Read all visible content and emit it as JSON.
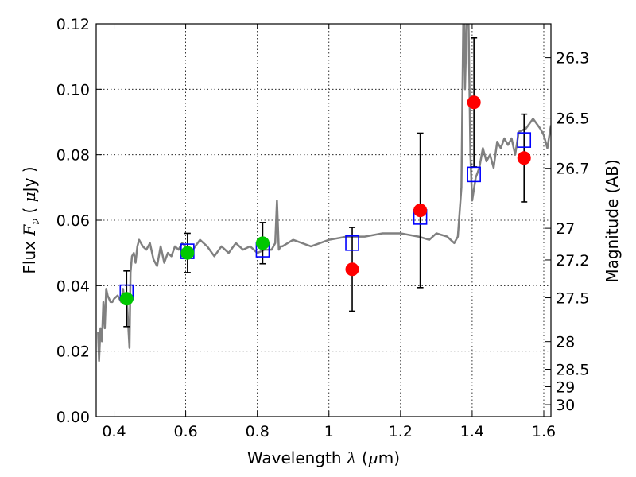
{
  "chart_data": {
    "type": "scatter",
    "xlabel_prefix": "Wavelength",
    "xlabel_symbol": "λ",
    "xlabel_unit_open": "(",
    "xlabel_unit_mu": "μ",
    "xlabel_unit_rest": "m)",
    "ylabel_prefix": "Flux",
    "ylabel_symbol": "F",
    "ylabel_sub": "ν",
    "ylabel_unit_open": "(",
    "ylabel_unit_mu": "μ",
    "ylabel_unit_rest": "Jy )",
    "y2label": "Magnitude (AB)",
    "xlim": [
      0.35,
      1.62
    ],
    "ylim": [
      0.0,
      0.12
    ],
    "grid": true,
    "x_ticks": [
      "0.4",
      "0.6",
      "0.8",
      "1",
      "1.2",
      "1.4",
      "1.6"
    ],
    "y_ticks": [
      "0.00",
      "0.02",
      "0.04",
      "0.06",
      "0.08",
      "0.10",
      "0.12"
    ],
    "mag_ticks": [
      "26.3",
      "26.5",
      "26.7",
      "27",
      "27.2",
      "27.5",
      "28",
      "28.5",
      "29",
      "30"
    ],
    "colors": {
      "model": "#808080",
      "model_points": "#0000ff",
      "ground_photometry": "#00c800",
      "nir_photometry": "#ff0000",
      "errorbars": "#000000"
    },
    "model_spectrum": {
      "x": [
        0.355,
        0.358,
        0.362,
        0.366,
        0.37,
        0.374,
        0.378,
        0.382,
        0.386,
        0.39,
        0.395,
        0.4,
        0.41,
        0.42,
        0.425,
        0.43,
        0.435,
        0.44,
        0.443,
        0.446,
        0.45,
        0.455,
        0.46,
        0.465,
        0.47,
        0.48,
        0.49,
        0.5,
        0.51,
        0.52,
        0.53,
        0.54,
        0.55,
        0.56,
        0.57,
        0.58,
        0.59,
        0.6,
        0.62,
        0.64,
        0.66,
        0.68,
        0.7,
        0.72,
        0.74,
        0.76,
        0.78,
        0.8,
        0.82,
        0.84,
        0.85,
        0.855,
        0.86,
        0.865,
        0.87,
        0.9,
        0.95,
        1.0,
        1.05,
        1.1,
        1.15,
        1.2,
        1.25,
        1.28,
        1.3,
        1.33,
        1.35,
        1.36,
        1.37,
        1.375,
        1.378,
        1.38,
        1.385,
        1.39,
        1.395,
        1.4,
        1.41,
        1.42,
        1.43,
        1.44,
        1.45,
        1.46,
        1.47,
        1.48,
        1.49,
        1.5,
        1.51,
        1.52,
        1.53,
        1.55,
        1.57,
        1.59,
        1.6,
        1.61,
        1.62
      ],
      "y": [
        0.026,
        0.017,
        0.027,
        0.023,
        0.035,
        0.027,
        0.039,
        0.037,
        0.036,
        0.035,
        0.035,
        0.036,
        0.037,
        0.035,
        0.039,
        0.035,
        0.037,
        0.027,
        0.021,
        0.044,
        0.049,
        0.05,
        0.047,
        0.052,
        0.054,
        0.052,
        0.051,
        0.053,
        0.048,
        0.046,
        0.052,
        0.047,
        0.05,
        0.049,
        0.052,
        0.051,
        0.053,
        0.052,
        0.051,
        0.054,
        0.052,
        0.049,
        0.052,
        0.05,
        0.053,
        0.051,
        0.052,
        0.05,
        0.051,
        0.051,
        0.053,
        0.066,
        0.051,
        0.052,
        0.052,
        0.054,
        0.052,
        0.054,
        0.055,
        0.055,
        0.056,
        0.056,
        0.055,
        0.054,
        0.056,
        0.055,
        0.053,
        0.055,
        0.07,
        0.12,
        0.122,
        0.1,
        0.122,
        0.12,
        0.08,
        0.066,
        0.073,
        0.076,
        0.082,
        0.078,
        0.08,
        0.076,
        0.084,
        0.082,
        0.085,
        0.083,
        0.085,
        0.08,
        0.087,
        0.088,
        0.091,
        0.088,
        0.086,
        0.082,
        0.089
      ]
    },
    "model_points": {
      "x": [
        0.435,
        0.605,
        0.815,
        1.065,
        1.255,
        1.405,
        1.545
      ],
      "y": [
        0.038,
        0.0505,
        0.051,
        0.053,
        0.061,
        0.074,
        0.0845
      ]
    },
    "ground_photometry": {
      "x": [
        0.435,
        0.605,
        0.815
      ],
      "y": [
        0.036,
        0.05,
        0.053
      ],
      "err": [
        0.0085,
        0.006,
        0.0063
      ]
    },
    "nir_photometry": {
      "x": [
        1.065,
        1.255,
        1.405,
        1.545
      ],
      "y": [
        0.045,
        0.063,
        0.096,
        0.079
      ],
      "err": [
        0.0128,
        0.0236,
        0.0197,
        0.0134
      ]
    }
  }
}
